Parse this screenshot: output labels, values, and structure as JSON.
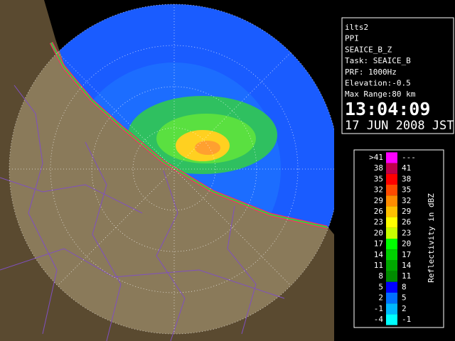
{
  "info": {
    "lines": [
      "ilts2",
      "PPI",
      "SEAICE_B_Z",
      "Task: SEAICE_B",
      "PRF: 1000Hz",
      "Elevation:-0.5",
      "Max Range:80 km"
    ],
    "time": "13:04:09",
    "date": "17 JUN 2008 JST"
  },
  "legend": {
    "title": "Reflectivity in dBZ",
    "rows": [
      {
        "low": ">41",
        "high": "---",
        "color": "#ff00ff"
      },
      {
        "low": "38",
        "high": "41",
        "color": "#c0004a"
      },
      {
        "low": "35",
        "high": "38",
        "color": "#ff0000"
      },
      {
        "low": "32",
        "high": "35",
        "color": "#ff4a00"
      },
      {
        "low": "29",
        "high": "32",
        "color": "#ff8c00"
      },
      {
        "low": "26",
        "high": "29",
        "color": "#ffc000"
      },
      {
        "low": "23",
        "high": "26",
        "color": "#ffff00"
      },
      {
        "low": "20",
        "high": "23",
        "color": "#c8ff00"
      },
      {
        "low": "17",
        "high": "20",
        "color": "#00ff00"
      },
      {
        "low": "14",
        "high": "17",
        "color": "#00d000"
      },
      {
        "low": "11",
        "high": "14",
        "color": "#00a800"
      },
      {
        "low": "8",
        "high": "11",
        "color": "#008c00"
      },
      {
        "low": "5",
        "high": "8",
        "color": "#0000ff"
      },
      {
        "low": "2",
        "high": "5",
        "color": "#0070ff"
      },
      {
        "low": "-1",
        "high": "2",
        "color": "#00b8ff"
      },
      {
        "low": "-4",
        "high": "-1",
        "color": "#00ffff"
      }
    ]
  }
}
